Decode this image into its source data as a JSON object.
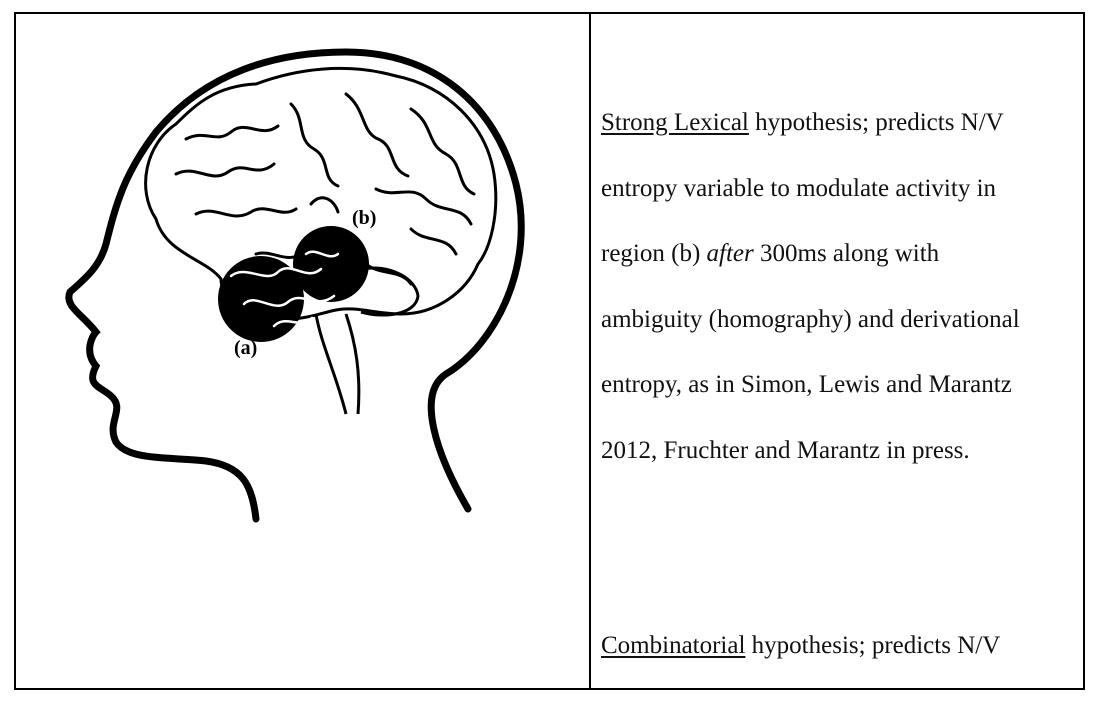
{
  "figure": {
    "label_a": "(a)",
    "label_b": "(b)"
  },
  "hypotheses": [
    {
      "name": "Strong Lexical",
      "lines": [
        " hypothesis; predicts N/V",
        "entropy variable to modulate activity in",
        "region (b) ",
        " 300ms along with",
        "ambiguity (homography) and derivational",
        "entropy, as in Simon, Lewis and Marantz",
        "2012, Fruchter and Marantz in press."
      ],
      "emphasis": "after"
    },
    {
      "name": "Combinatorial",
      "lines": [
        " hypothesis; predicts N/V"
      ]
    }
  ]
}
